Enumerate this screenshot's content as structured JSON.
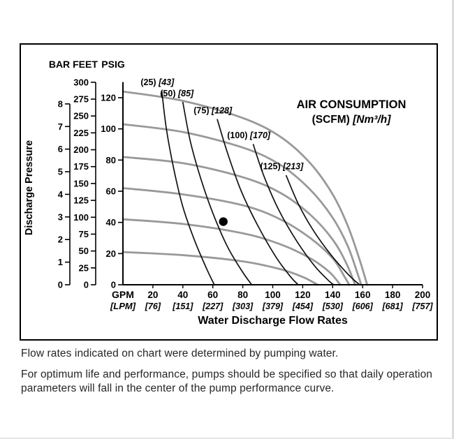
{
  "chart_data": {
    "type": "line",
    "title_line1": "AIR CONSUMPTION",
    "title_line2_bold": "(SCFM)",
    "title_line2_italic": "[Nm³/h]",
    "y_axis_title": "Discharge Pressure",
    "x_axis_title": "Water Discharge Flow Rates",
    "colors": {
      "performance_curve": "#999999",
      "air_curve": "#111111",
      "axis": "#000000",
      "dot": "#000000"
    },
    "y_scales": [
      {
        "name": "BAR",
        "ticks": [
          0,
          1,
          2,
          3,
          4,
          5,
          6,
          7,
          8
        ],
        "psi_per_unit": 14.5038
      },
      {
        "name": "FEET",
        "ticks": [
          0,
          25,
          50,
          75,
          100,
          125,
          150,
          175,
          200,
          225,
          250,
          275,
          300
        ],
        "psi_per_unit": 0.4331
      },
      {
        "name": "PSIG",
        "ticks": [
          0,
          20,
          40,
          60,
          80,
          100,
          120
        ],
        "psi_per_unit": 1
      }
    ],
    "x_axis": {
      "gpm_label": "GPM",
      "lpm_label": "[LPM]",
      "gpm_max": 200,
      "gpm_ticks": [
        20,
        40,
        60,
        80,
        100,
        120,
        140,
        160,
        180,
        200
      ],
      "lpm_ticks": [
        "[76]",
        "[151]",
        "[227]",
        "[303]",
        "[379]",
        "[454]",
        "[530]",
        "[606]",
        "[681]",
        "[757]"
      ]
    },
    "performance_curves": [
      {
        "points": [
          [
            0,
            124
          ],
          [
            40,
            118
          ],
          [
            80,
            107
          ],
          [
            105,
            95
          ],
          [
            125,
            78
          ],
          [
            140,
            58
          ],
          [
            150,
            38
          ],
          [
            158,
            16
          ],
          [
            163,
            0
          ]
        ]
      },
      {
        "points": [
          [
            0,
            103
          ],
          [
            40,
            98
          ],
          [
            80,
            88
          ],
          [
            105,
            77
          ],
          [
            125,
            61
          ],
          [
            140,
            43
          ],
          [
            150,
            25
          ],
          [
            157,
            6
          ],
          [
            159,
            0
          ]
        ]
      },
      {
        "points": [
          [
            0,
            82
          ],
          [
            40,
            78
          ],
          [
            80,
            69
          ],
          [
            105,
            59
          ],
          [
            125,
            45
          ],
          [
            140,
            29
          ],
          [
            149,
            14
          ],
          [
            155,
            0
          ]
        ]
      },
      {
        "points": [
          [
            0,
            62
          ],
          [
            40,
            58
          ],
          [
            80,
            51
          ],
          [
            105,
            42
          ],
          [
            125,
            30
          ],
          [
            140,
            17
          ],
          [
            148,
            5
          ],
          [
            151,
            0
          ]
        ]
      },
      {
        "points": [
          [
            0,
            42
          ],
          [
            40,
            39
          ],
          [
            80,
            33
          ],
          [
            105,
            26
          ],
          [
            125,
            17
          ],
          [
            138,
            8
          ],
          [
            145,
            0
          ]
        ]
      },
      {
        "points": [
          [
            0,
            21
          ],
          [
            40,
            19
          ],
          [
            80,
            15
          ],
          [
            105,
            10
          ],
          [
            120,
            5
          ],
          [
            130,
            0
          ]
        ]
      }
    ],
    "air_curves": [
      {
        "scfm": "(25)",
        "nm3h": "[43]",
        "label_at": [
          23,
          128
        ],
        "points": [
          [
            26,
            124
          ],
          [
            29,
            100
          ],
          [
            34,
            74
          ],
          [
            40,
            50
          ],
          [
            48,
            28
          ],
          [
            56,
            10
          ],
          [
            61,
            0
          ]
        ]
      },
      {
        "scfm": "(50)",
        "nm3h": "[85]",
        "label_at": [
          36,
          121
        ],
        "points": [
          [
            40,
            117
          ],
          [
            45,
            92
          ],
          [
            52,
            68
          ],
          [
            60,
            46
          ],
          [
            70,
            24
          ],
          [
            80,
            8
          ],
          [
            86,
            0
          ]
        ]
      },
      {
        "scfm": "(75)",
        "nm3h": "[128]",
        "label_at": [
          60,
          110
        ],
        "points": [
          [
            63,
            106
          ],
          [
            70,
            84
          ],
          [
            79,
            60
          ],
          [
            90,
            38
          ],
          [
            102,
            18
          ],
          [
            112,
            5
          ],
          [
            117,
            0
          ]
        ]
      },
      {
        "scfm": "(100)",
        "nm3h": "[170]",
        "label_at": [
          84,
          94
        ],
        "points": [
          [
            87,
            90
          ],
          [
            94,
            70
          ],
          [
            104,
            48
          ],
          [
            116,
            28
          ],
          [
            128,
            12
          ],
          [
            138,
            2
          ],
          [
            141,
            0
          ]
        ]
      },
      {
        "scfm": "(125)",
        "nm3h": "[213]",
        "label_at": [
          106,
          74
        ],
        "points": [
          [
            109,
            70
          ],
          [
            117,
            52
          ],
          [
            127,
            35
          ],
          [
            139,
            19
          ],
          [
            151,
            6
          ],
          [
            158,
            0
          ]
        ]
      }
    ],
    "operating_point": {
      "gpm": 67,
      "psi": 40.5
    }
  },
  "notes": [
    "Flow rates indicated on chart were determined by pumping water.",
    "For optimum life and performance, pumps should be specified so that daily operation parameters will fall in the center of the pump performance curve."
  ]
}
